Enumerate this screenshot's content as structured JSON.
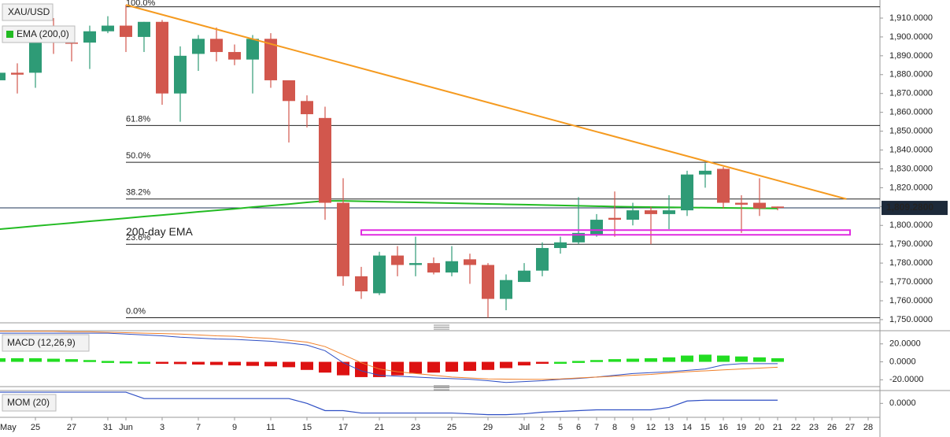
{
  "chart_data": [
    {
      "type": "candlestick",
      "categories": [
        "May",
        null,
        "25",
        null,
        "27",
        null,
        "31",
        "Jun",
        null,
        "3",
        null,
        "7",
        null,
        "9",
        null,
        "11",
        null,
        "15",
        null,
        "17",
        null,
        "21",
        null,
        "23",
        null,
        "25",
        null,
        "29",
        null,
        "Jul",
        "2",
        "5",
        "6",
        "7",
        "8",
        "9",
        "12",
        "13",
        "14",
        "15",
        "16",
        "19",
        "20",
        "21",
        "22",
        "23",
        "26",
        "27",
        "28"
      ],
      "series": [
        {
          "name": "XAU/USD",
          "up_color": "#2e9b76",
          "down_color": "#d2574d",
          "open": [
            1877,
            1881,
            1881,
            1899,
            1897,
            1897,
            1903,
            1906,
            1900,
            1908,
            1870,
            1891,
            1899,
            1892,
            1888,
            1899,
            1877,
            1866,
            1857,
            1812,
            1773,
            1764,
            1784,
            1779,
            1780,
            1775,
            1782,
            1779,
            1761,
            1770,
            1776,
            1788,
            1791,
            1795,
            1804,
            1803,
            1808,
            1806,
            1808,
            1827,
            1830,
            1812,
            1812,
            1810,
            null,
            null,
            null,
            null,
            null
          ],
          "high": [
            1889,
            1886,
            1902,
            1910,
            1904,
            1906,
            1911,
            1917,
            1908,
            1909,
            1895,
            1901,
            1905,
            1896,
            1901,
            1902,
            1877,
            1869,
            1863,
            1825,
            1778,
            1786,
            1789,
            1794,
            1783,
            1789,
            1785,
            1780,
            1774,
            1780,
            1791,
            1794,
            1815,
            1806,
            1818,
            1812,
            1810,
            1816,
            1829,
            1833,
            1831,
            1816,
            1825,
            1810,
            null,
            null,
            null,
            null,
            null
          ],
          "low": [
            1870,
            1870,
            1873,
            1891,
            1887,
            1883,
            1902,
            1892,
            1892,
            1864,
            1855,
            1882,
            1887,
            1885,
            1870,
            1873,
            1844,
            1852,
            1803,
            1768,
            1761,
            1763,
            1773,
            1773,
            1774,
            1773,
            1769,
            1751,
            1755,
            1770,
            1773,
            1785,
            1790,
            1794,
            1794,
            1800,
            1790,
            1798,
            1805,
            1820,
            1809,
            1796,
            1805,
            1808,
            null,
            null,
            null,
            null,
            null
          ],
          "close": [
            1881,
            1880,
            1899,
            1897,
            1896.5,
            1903,
            1906,
            1900,
            1908,
            1870,
            1890,
            1899,
            1892,
            1888,
            1899,
            1877,
            1866,
            1859,
            1812,
            1773,
            1765,
            1784,
            1779,
            1780,
            1775,
            1781,
            1779,
            1761,
            1771,
            1776,
            1788,
            1791,
            1796,
            1803,
            1803,
            1808,
            1806,
            1808,
            1827,
            1829,
            1812,
            1811,
            1809,
            1809.28,
            null,
            null,
            null,
            null,
            null
          ]
        },
        {
          "name": "EMA (200,0)",
          "type": "line",
          "color": "#22bb22",
          "values": [
            1798,
            1798.8,
            1799.7,
            1800.5,
            1801.3,
            1802.2,
            1803,
            1803.8,
            1804.7,
            1805.5,
            1806.3,
            1807.2,
            1808,
            1808.8,
            1809.7,
            1810.5,
            1811.3,
            1812.2,
            1813,
            1813,
            1812.8,
            1812.6,
            1812.4,
            1812.2,
            1812,
            1811.8,
            1811.6,
            1811.4,
            1811.2,
            1811,
            1810.8,
            1810.6,
            1810.4,
            1810.2,
            1810,
            1809.8,
            1809.7,
            1809.6,
            1809.5,
            1809.4,
            1809.3,
            1809.2,
            1809.1,
            1809,
            null,
            null,
            null,
            null,
            null
          ]
        }
      ],
      "ylim": [
        1748.3,
        1919.6
      ],
      "yticks": [
        {
          "value": 1750,
          "label": "1,750.0000"
        },
        {
          "value": 1760,
          "label": "1,760.0000"
        },
        {
          "value": 1770,
          "label": "1,770.0000"
        },
        {
          "value": 1780,
          "label": "1,780.0000"
        },
        {
          "value": 1790,
          "label": "1,790.0000"
        },
        {
          "value": 1800,
          "label": "1,800.0000"
        },
        {
          "value": 1810,
          "label": "1,810.0000"
        },
        {
          "value": 1820,
          "label": "1,820.0000"
        },
        {
          "value": 1830,
          "label": "1,830.0000"
        },
        {
          "value": 1840,
          "label": "1,840.0000"
        },
        {
          "value": 1850,
          "label": "1,850.0000"
        },
        {
          "value": 1860,
          "label": "1,860.0000"
        },
        {
          "value": 1870,
          "label": "1,870.0000"
        },
        {
          "value": 1880,
          "label": "1,880.0000"
        },
        {
          "value": 1890,
          "label": "1,890.0000"
        },
        {
          "value": 1900,
          "label": "1,900.0000"
        },
        {
          "value": 1910,
          "label": "1,910.0000"
        }
      ],
      "fib_levels": [
        {
          "label": "100.0%",
          "value": 1916
        },
        {
          "label": "61.8%",
          "value": 1853
        },
        {
          "label": "50.0%",
          "value": 1833.5
        },
        {
          "label": "38.2%",
          "value": 1814
        },
        {
          "label": "23.6%",
          "value": 1790
        },
        {
          "label": "0.0%",
          "value": 1751
        }
      ],
      "fib_start": 7,
      "trendline": {
        "x": [
          7,
          46.8
        ],
        "y": [
          1917,
          1814
        ],
        "color": "#f59a1f"
      },
      "zone": {
        "x": [
          20,
          47
        ],
        "y": [
          1795,
          1797.5
        ],
        "color": "#e02ce0"
      },
      "annotation": {
        "text": "200-day EMA",
        "color": "#22bb22"
      },
      "last_price": {
        "value": 1809.28,
        "label": "1,809.2800"
      }
    },
    {
      "type": "macd",
      "title": "MACD (12,26,9)",
      "ylim": [
        -27.6,
        34.7
      ],
      "yticks": [
        {
          "value": 20,
          "label": "20.0000"
        },
        {
          "value": 0,
          "label": "0.0000"
        },
        {
          "value": -20,
          "label": "-20.0000"
        }
      ],
      "histogram": {
        "up_color": "#22dd22",
        "down_color": "#dd1111",
        "values": [
          4,
          4,
          4,
          3.5,
          3,
          2,
          1,
          0.5,
          0,
          -2,
          -2.5,
          -3,
          -3.5,
          -4,
          -4.5,
          -5,
          -6,
          -9,
          -12,
          -15,
          -17,
          -17,
          -15,
          -13,
          -12,
          -11,
          -10,
          -9,
          -7,
          -4,
          -2,
          0,
          1,
          2,
          3,
          3.5,
          4,
          5,
          7,
          8,
          7,
          6,
          5,
          4,
          null,
          null,
          null,
          null,
          null
        ]
      },
      "series": [
        {
          "color": "#2f4fc4",
          "values": [
            32,
            32,
            32,
            32,
            32,
            32,
            32,
            31,
            30,
            29,
            27.5,
            26.5,
            25.5,
            25,
            24,
            23,
            21,
            18.7,
            12.4,
            -1,
            -10,
            -15,
            -16,
            -17,
            -18,
            -18.7,
            -19.5,
            -21,
            -23,
            -22,
            -21,
            -19.5,
            -18.5,
            -17,
            -15,
            -13,
            -12,
            -11,
            -9.5,
            -8,
            -3.5,
            -2,
            -2,
            -2,
            null,
            null,
            null,
            null,
            null
          ]
        },
        {
          "color": "#f0802a",
          "values": [
            34,
            34,
            34,
            34,
            33.5,
            33.5,
            33,
            32.5,
            32,
            31.5,
            31,
            30,
            29,
            28.5,
            27,
            26,
            24,
            22,
            17,
            8,
            -1,
            -8,
            -11,
            -13,
            -15,
            -17,
            -18,
            -19,
            -19.3,
            -19.5,
            -19.5,
            -19,
            -18,
            -17,
            -16,
            -15,
            -14,
            -12.5,
            -11,
            -10,
            -9,
            -8,
            -7,
            -6,
            null,
            null,
            null,
            null,
            null
          ]
        }
      ]
    },
    {
      "type": "line",
      "title": "MOM (20)",
      "ylim": [
        -35,
        16
      ],
      "yticks": [
        {
          "value": 0,
          "label": "0.0000"
        }
      ],
      "series": [
        {
          "color": "#2f4fc4",
          "values": [
            14,
            14,
            14,
            14,
            14,
            14,
            14,
            14,
            6,
            6,
            6,
            6,
            6,
            6,
            6,
            6,
            6,
            0,
            -9,
            -9,
            -12,
            -12,
            -12,
            -12,
            -12,
            -12,
            -13,
            -14,
            -14,
            -13,
            -11,
            -10,
            -9,
            -8,
            -8,
            -8,
            -8,
            -5,
            3,
            4,
            4,
            4,
            4,
            4,
            null,
            null,
            null,
            null,
            null
          ]
        }
      ]
    }
  ]
}
